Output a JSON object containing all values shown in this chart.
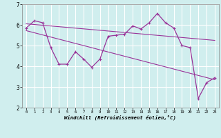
{
  "x_data": [
    0,
    1,
    2,
    3,
    4,
    5,
    6,
    7,
    8,
    9,
    10,
    11,
    12,
    13,
    14,
    15,
    16,
    17,
    18,
    19,
    20,
    21,
    22,
    23
  ],
  "y_data": [
    5.85,
    6.2,
    6.1,
    4.9,
    4.1,
    4.1,
    4.7,
    4.35,
    3.95,
    4.35,
    5.45,
    5.5,
    5.55,
    5.95,
    5.8,
    6.1,
    6.55,
    6.1,
    5.85,
    5.0,
    4.9,
    2.45,
    3.2,
    3.45
  ],
  "trend1_x": [
    0,
    23
  ],
  "trend1_y": [
    6.05,
    5.25
  ],
  "trend2_x": [
    0,
    23
  ],
  "trend2_y": [
    5.72,
    3.35
  ],
  "line_color": "#993399",
  "background_color": "#d0eeee",
  "grid_color": "#ffffff",
  "xlabel": "Windchill (Refroidissement éolien,°C)",
  "xlim": [
    -0.5,
    23.5
  ],
  "ylim": [
    2,
    7
  ],
  "yticks": [
    2,
    3,
    4,
    5,
    6,
    7
  ],
  "xticks": [
    0,
    1,
    2,
    3,
    4,
    5,
    6,
    7,
    8,
    9,
    10,
    11,
    12,
    13,
    14,
    15,
    16,
    17,
    18,
    19,
    20,
    21,
    22,
    23
  ],
  "xticklabels": [
    "0",
    "1",
    "2",
    "3",
    "4",
    "5",
    "6",
    "7",
    "8",
    "9",
    "10",
    "11",
    "12",
    "13",
    "14",
    "15",
    "16",
    "17",
    "18",
    "19",
    "20",
    "21",
    "22",
    "23"
  ]
}
